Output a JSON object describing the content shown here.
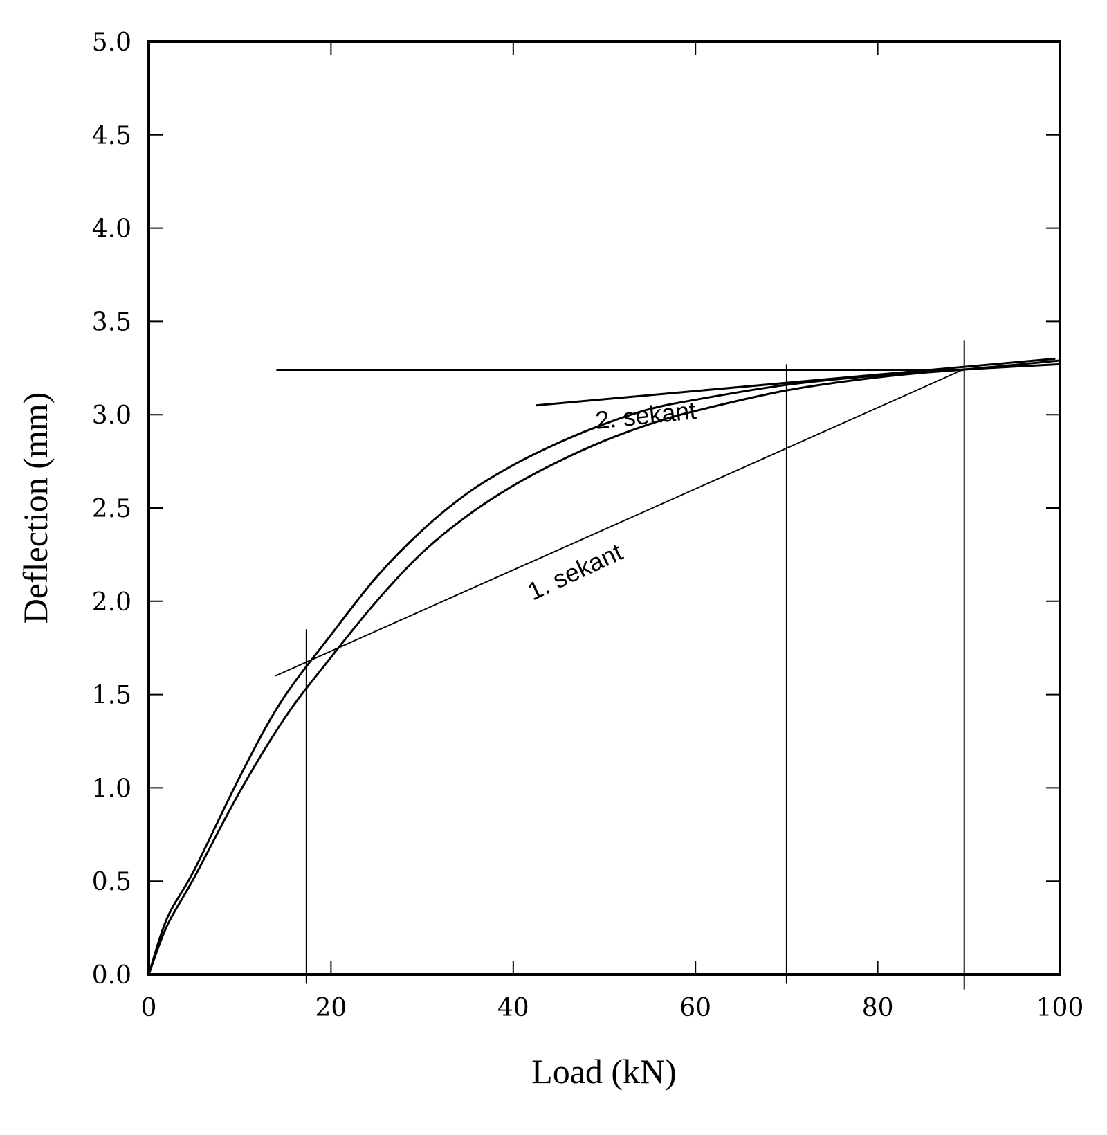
{
  "chart_data": {
    "type": "line",
    "title": "",
    "xlabel": "Load (kN)",
    "ylabel": "Deflection (mm)",
    "xlim": [
      0,
      100
    ],
    "ylim": [
      0,
      5.0
    ],
    "grid": false,
    "x_ticks": [
      "0",
      "20",
      "40",
      "60",
      "80",
      "100"
    ],
    "y_ticks": [
      "0.0",
      "0.5",
      "1.0",
      "1.5",
      "2.0",
      "2.5",
      "3.0",
      "3.5",
      "4.0",
      "4.5",
      "5.0"
    ],
    "series": [
      {
        "x": [
          0,
          2,
          5,
          10,
          14.5,
          20,
          25,
          30,
          35,
          40,
          45,
          50,
          55,
          60,
          70,
          80,
          89,
          100
        ],
        "y": [
          0,
          0.3,
          0.56,
          1.06,
          1.46,
          1.82,
          2.13,
          2.38,
          2.58,
          2.73,
          2.85,
          2.95,
          3.03,
          3.08,
          3.16,
          3.21,
          3.24,
          3.29
        ]
      },
      {
        "x": [
          0,
          2,
          5,
          10,
          15,
          20,
          25,
          30,
          35,
          40,
          45,
          50,
          55,
          60,
          70,
          80,
          89,
          100
        ],
        "y": [
          0,
          0.26,
          0.52,
          0.98,
          1.38,
          1.7,
          2.0,
          2.26,
          2.46,
          2.62,
          2.75,
          2.86,
          2.95,
          3.02,
          3.13,
          3.2,
          3.24,
          3.27
        ]
      }
    ],
    "reference_lines": {
      "horizontal": {
        "y": 3.24,
        "x_range": [
          14,
          89.5
        ]
      },
      "vertical": [
        {
          "x": 17.3,
          "y_range": [
            -0.05,
            1.85
          ]
        },
        {
          "x": 70.0,
          "y_range": [
            -0.05,
            3.27
          ]
        },
        {
          "x": 89.5,
          "y_range": [
            -0.08,
            3.4
          ]
        }
      ]
    },
    "secants": [
      {
        "label": "1. sekant",
        "x": [
          13.9,
          89.3
        ],
        "y": [
          1.6,
          3.24
        ]
      },
      {
        "label": "2. sekant",
        "x": [
          42.5,
          99.5
        ],
        "y": [
          3.05,
          3.3
        ]
      }
    ]
  }
}
